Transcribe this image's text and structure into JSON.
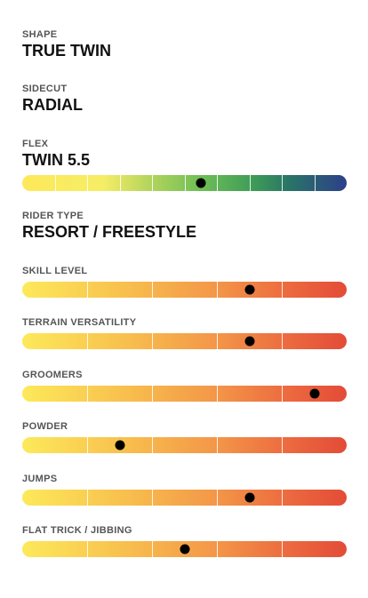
{
  "specs": {
    "shape": {
      "label": "SHAPE",
      "value": "TRUE TWIN"
    },
    "sidecut": {
      "label": "SIDECUT",
      "value": "RADIAL"
    },
    "flex": {
      "label": "FLEX",
      "value": "TWIN 5.5",
      "rating_fraction": 0.551,
      "segments": 10
    },
    "rider_type": {
      "label": "RIDER TYPE",
      "value": "RESORT / FREESTYLE"
    }
  },
  "ratings": [
    {
      "id": "skill-level",
      "label": "SKILL LEVEL",
      "rating_fraction": 0.7,
      "segments": 5
    },
    {
      "id": "terrain-versatility",
      "label": "TERRAIN VERSATILITY",
      "rating_fraction": 0.7,
      "segments": 5
    },
    {
      "id": "groomers",
      "label": "GROOMERS",
      "rating_fraction": 0.9,
      "segments": 5
    },
    {
      "id": "powder",
      "label": "POWDER",
      "rating_fraction": 0.3,
      "segments": 5
    },
    {
      "id": "jumps",
      "label": "JUMPS",
      "rating_fraction": 0.7,
      "segments": 5
    },
    {
      "id": "flat-trick-jibbing",
      "label": "FLAT TRICK / JIBBING",
      "rating_fraction": 0.5,
      "segments": 5
    }
  ],
  "colors": {
    "flex_gradient": [
      "#fde95a",
      "#6fbf55",
      "#2c3f8a"
    ],
    "rating_gradient": [
      "#fde95a",
      "#f39648",
      "#e34b37"
    ],
    "marker": "#000000"
  }
}
